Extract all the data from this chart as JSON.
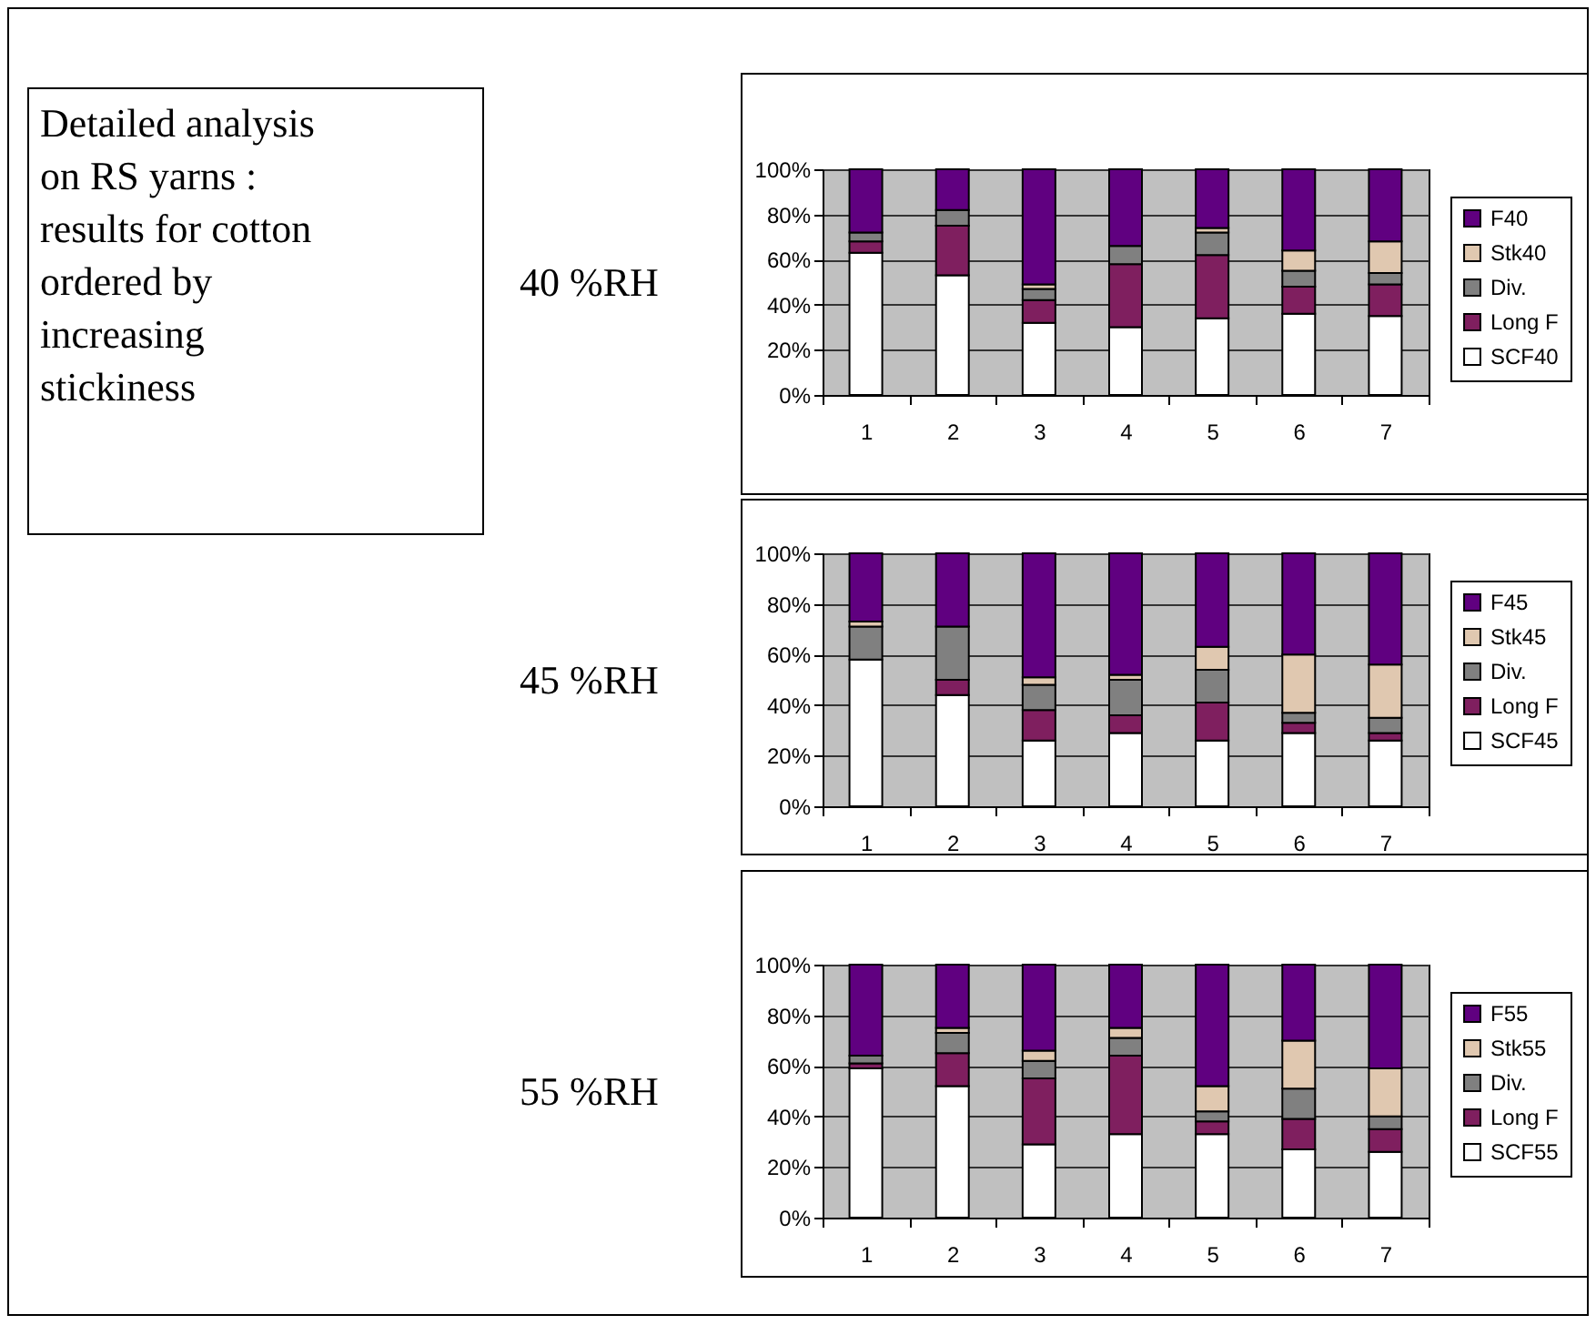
{
  "chart_data": [
    {
      "type": "other",
      "annotations": [
        "Detailed analysis\non RS yarns :\nresults for cotton\nordered by\nincreasing\nstickiness"
      ]
    },
    {
      "type": "bar",
      "stacked": true,
      "ylabel": "40 %RH",
      "categories": [
        "1",
        "2",
        "3",
        "4",
        "5",
        "6",
        "7"
      ],
      "ylim": [
        0,
        100
      ],
      "yticks": [
        {
          "value": 0,
          "label": "0%"
        },
        {
          "value": 20,
          "label": "20%"
        },
        {
          "value": 40,
          "label": "40%"
        },
        {
          "value": 60,
          "label": "60%"
        },
        {
          "value": 80,
          "label": "80%"
        },
        {
          "value": 100,
          "label": "100%"
        }
      ],
      "grid": "y",
      "legend": "right",
      "series": [
        {
          "name": "SCF40",
          "color": "#ffffff",
          "values": [
            63,
            53,
            32,
            30,
            34,
            36,
            35
          ]
        },
        {
          "name": "Long F",
          "color": "#7f1f5f",
          "values": [
            5,
            22,
            10,
            28,
            28,
            12,
            14
          ]
        },
        {
          "name": "Div.",
          "color": "#808080",
          "values": [
            4,
            7,
            5,
            8,
            10,
            7,
            5
          ]
        },
        {
          "name": "Stk40",
          "color": "#e0c8b0",
          "values": [
            0,
            0,
            2,
            0,
            2,
            9,
            14
          ]
        },
        {
          "name": "F40",
          "color": "#600080",
          "values": [
            28,
            18,
            51,
            34,
            26,
            36,
            32
          ]
        }
      ]
    },
    {
      "type": "bar",
      "stacked": true,
      "ylabel": "45 %RH",
      "categories": [
        "1",
        "2",
        "3",
        "4",
        "5",
        "6",
        "7"
      ],
      "ylim": [
        0,
        100
      ],
      "yticks": [
        {
          "value": 0,
          "label": "0%"
        },
        {
          "value": 20,
          "label": "20%"
        },
        {
          "value": 40,
          "label": "40%"
        },
        {
          "value": 60,
          "label": "60%"
        },
        {
          "value": 80,
          "label": "80%"
        },
        {
          "value": 100,
          "label": "100%"
        }
      ],
      "grid": "y",
      "legend": "right",
      "series": [
        {
          "name": "SCF45",
          "color": "#ffffff",
          "values": [
            58,
            44,
            26,
            29,
            26,
            29,
            26
          ]
        },
        {
          "name": "Long F",
          "color": "#7f1f5f",
          "values": [
            0,
            6,
            12,
            7,
            15,
            4,
            3
          ]
        },
        {
          "name": "Div.",
          "color": "#808080",
          "values": [
            13,
            21,
            10,
            14,
            13,
            4,
            6
          ]
        },
        {
          "name": "Stk45",
          "color": "#e0c8b0",
          "values": [
            2,
            0,
            3,
            2,
            9,
            23,
            21
          ]
        },
        {
          "name": "F45",
          "color": "#600080",
          "values": [
            27,
            29,
            49,
            48,
            37,
            40,
            44
          ]
        }
      ]
    },
    {
      "type": "bar",
      "stacked": true,
      "ylabel": "55 %RH",
      "categories": [
        "1",
        "2",
        "3",
        "4",
        "5",
        "6",
        "7"
      ],
      "ylim": [
        0,
        100
      ],
      "yticks": [
        {
          "value": 0,
          "label": "0%"
        },
        {
          "value": 20,
          "label": "20%"
        },
        {
          "value": 40,
          "label": "40%"
        },
        {
          "value": 60,
          "label": "60%"
        },
        {
          "value": 80,
          "label": "80%"
        },
        {
          "value": 100,
          "label": "100%"
        }
      ],
      "grid": "y",
      "legend": "right",
      "series": [
        {
          "name": "SCF55",
          "color": "#ffffff",
          "values": [
            59,
            52,
            29,
            33,
            33,
            27,
            26
          ]
        },
        {
          "name": "Long F",
          "color": "#7f1f5f",
          "values": [
            2,
            13,
            26,
            31,
            5,
            12,
            9
          ]
        },
        {
          "name": "Div.",
          "color": "#808080",
          "values": [
            3,
            8,
            7,
            7,
            4,
            12,
            5
          ]
        },
        {
          "name": "Stk55",
          "color": "#e0c8b0",
          "values": [
            0,
            2,
            4,
            4,
            10,
            19,
            19
          ]
        },
        {
          "name": "F55",
          "color": "#600080",
          "values": [
            36,
            25,
            34,
            25,
            48,
            30,
            41
          ]
        }
      ]
    }
  ]
}
